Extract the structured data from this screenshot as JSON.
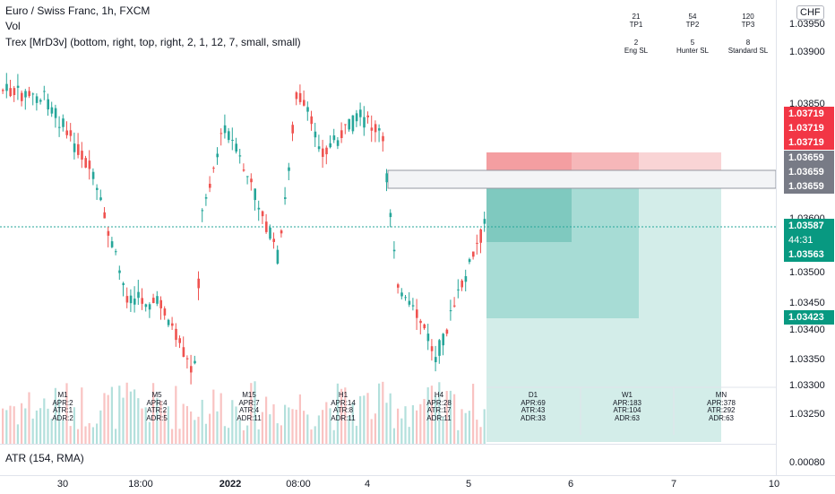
{
  "legend": {
    "title": "Euro / Swiss Franc, 1h, FXCM",
    "vol": "Vol",
    "indicator": "Trex [MrD3v] (bottom, right, top, right, 2, 1, 12, 7, small, small)"
  },
  "tp_table": [
    {
      "value": "21",
      "label": "TP1"
    },
    {
      "value": "54",
      "label": "TP2"
    },
    {
      "value": "120",
      "label": "TP3"
    },
    {
      "value": "2",
      "label": "Eng SL"
    },
    {
      "value": "5",
      "label": "Hunter SL"
    },
    {
      "value": "8",
      "label": "Standard SL"
    }
  ],
  "timeframes": [
    {
      "name": "M1",
      "apr": "APR:2",
      "atr": "ATR:1",
      "adr": "ADR:2"
    },
    {
      "name": "M5",
      "apr": "APR:4",
      "atr": "ATR:2",
      "adr": "ADR:5"
    },
    {
      "name": "M15",
      "apr": "APR:7",
      "atr": "ATR:4",
      "adr": "ADR:11"
    },
    {
      "name": "H1",
      "apr": "APR:14",
      "atr": "ATR:8",
      "adr": "ADR:11"
    },
    {
      "name": "H4",
      "apr": "APR:28",
      "atr": "ATR:17",
      "adr": "ADR:11"
    },
    {
      "name": "D1",
      "apr": "APR:69",
      "atr": "ATR:43",
      "adr": "ADR:33"
    },
    {
      "name": "W1",
      "apr": "APR:183",
      "atr": "ATR:104",
      "adr": "ADR:63"
    },
    {
      "name": "MN",
      "apr": "APR:378",
      "atr": "ATR:292",
      "adr": "ADR:63"
    }
  ],
  "price_axis": {
    "currency": "CHF",
    "ticks": [
      "1.03950",
      "1.03900",
      "1.03850",
      "1.03600",
      "1.03500",
      "1.03450",
      "1.03400",
      "1.03350",
      "1.03300",
      "1.03250"
    ],
    "tags": {
      "red1": "1.03719",
      "red2": "1.03719",
      "red3": "1.03719",
      "grey1": "1.03659",
      "grey2": "1.03659",
      "grey3": "1.03659",
      "current": "1.03587",
      "countdown": "44:31",
      "green2": "1.03563",
      "green3": "1.03423"
    },
    "atr_value": "0.00080"
  },
  "atr_pane": {
    "label": "ATR (154, RMA)"
  },
  "time_axis": [
    "30",
    "18:00",
    "2022",
    "08:00",
    "4",
    "5",
    "6",
    "7",
    "10"
  ],
  "colors": {
    "up": "#26a69a",
    "down": "#ef5350",
    "red_tag": "#f23645",
    "grey_tag": "#787b86",
    "green_tag": "#089981"
  },
  "icons": {
    "currency": "currency-selector-icon"
  }
}
